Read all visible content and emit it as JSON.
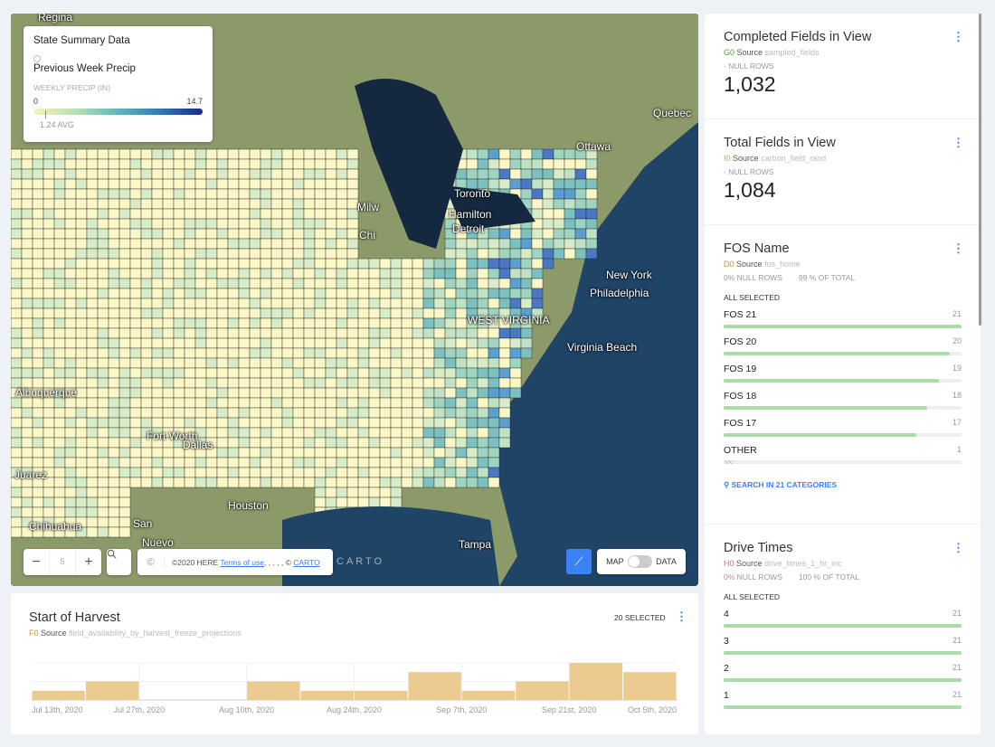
{
  "map": {
    "legend": {
      "title": "State Summary Data",
      "layer": "Previous Week Precip",
      "variable": "WEEKLY PRECIP (IN)",
      "min": "0",
      "max": "14.7",
      "avg_label": "1.24 AVG",
      "avg_value": 1.24,
      "gradient": [
        "#f6f2b8",
        "#b9e0b4",
        "#5fb8b8",
        "#2f7bb5",
        "#1a2c85"
      ]
    },
    "zoom": {
      "minus": "−",
      "level": "5",
      "plus": "+"
    },
    "search_icon": "search-icon",
    "attribution": {
      "copyright_symbol": "©",
      "text": "©2020 HERE ",
      "terms": "Terms of use",
      "sep": ", , , , , © ",
      "carto": "CARTO"
    },
    "carto_logo": "CARTO",
    "draw_icon": "polygon-draw-icon",
    "toggle": {
      "left": "MAP",
      "right": "DATA"
    },
    "place_labels": [
      "Regina",
      "Quebec",
      "Ottawa",
      "Toronto",
      "Hamilton",
      "Detroit",
      "Milw",
      "Chi",
      "New York",
      "Philadelphia",
      "Virginia Beach",
      "WEST VIRGINIA",
      "Albuquerque",
      "Fort Worth",
      "Dallas",
      "Juarez",
      "Chihuahua",
      "Nuevo",
      "Tampa",
      "Houston",
      "San"
    ]
  },
  "harvest": {
    "title": "Start of Harvest",
    "source_code": "F0",
    "source_label": "Source",
    "source_name": "field_availability_by_harvest_freeze_projections",
    "selected": "20 SELECTED",
    "chart_data": {
      "type": "bar",
      "bins": [
        "Jul 13th, 2020",
        "Jul 20th, 2020",
        "Jul 27th, 2020",
        "Aug 3rd, 2020",
        "Aug 10th, 2020",
        "Aug 17th, 2020",
        "Aug 24th, 2020",
        "Aug 31st, 2020",
        "Sep 7th, 2020",
        "Sep 14th, 2020",
        "Sep 21st, 2020",
        "Sep 28th, 2020"
      ],
      "values": [
        1,
        2,
        0,
        0,
        2,
        1,
        1,
        3,
        1,
        2,
        4,
        3
      ],
      "tick_labels": [
        "Jul 13th, 2020",
        "Jul 27th, 2020",
        "Aug 10th, 2020",
        "Aug 24th, 2020",
        "Sep 7th, 2020",
        "Sep 21st, 2020",
        "Oct 5th, 2020"
      ],
      "color": "#eccb90",
      "ylim": [
        0,
        4
      ]
    }
  },
  "widgets": {
    "completed": {
      "title": "Completed Fields in View",
      "source_code": "G0",
      "source_label": "Source",
      "source_name": "sampled_fields",
      "null_rows": "- NULL ROWS",
      "value": "1,032"
    },
    "total": {
      "title": "Total Fields in View",
      "source_code": "I0",
      "source_label": "Source",
      "source_name": "carbon_field_rand",
      "null_rows": "- NULL ROWS",
      "value": "1,084"
    },
    "fos": {
      "title": "FOS Name",
      "source_code": "D0",
      "source_label": "Source",
      "source_name": "fos_home",
      "null_rows": "0% NULL ROWS",
      "of_total": "99 % OF TOTAL",
      "all_selected": "ALL SELECTED",
      "categories": [
        {
          "label": "FOS 21",
          "count": "21",
          "value": 21
        },
        {
          "label": "FOS 20",
          "count": "20",
          "value": 20
        },
        {
          "label": "FOS 19",
          "count": "19",
          "value": 19
        },
        {
          "label": "FOS 18",
          "count": "18",
          "value": 18
        },
        {
          "label": "FOS 17",
          "count": "17",
          "value": 17
        },
        {
          "label": "OTHER",
          "count": "1",
          "value": 1
        }
      ],
      "search": "SEARCH IN 21 CATEGORIES"
    },
    "drive": {
      "title": "Drive Times",
      "source_code": "H0",
      "source_label": "Source",
      "source_name": "drive_times_1_hr_inc",
      "null_rows": "0% NULL ROWS",
      "of_total": "100 % OF TOTAL",
      "all_selected": "ALL SELECTED",
      "categories": [
        {
          "label": "4",
          "count": "21",
          "value": 21
        },
        {
          "label": "3",
          "count": "21",
          "value": 21
        },
        {
          "label": "2",
          "count": "21",
          "value": 21
        },
        {
          "label": "1",
          "count": "21",
          "value": 21
        }
      ]
    }
  },
  "colors": {
    "accent": "#3b82f6",
    "bar": "#a8dca8",
    "G0": "#5aa02c",
    "I0": "#e0a030",
    "D0": "#d4912a",
    "H0": "#e05aa8",
    "F0": "#d4912a"
  }
}
